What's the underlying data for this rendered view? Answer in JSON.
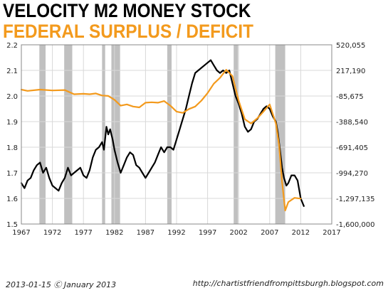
{
  "chart_data": {
    "type": "line",
    "title": "VELOCITY M2 MONEY STOCK",
    "subtitle": "FEDERAL SURPLUS / DEFICIT",
    "colors": {
      "velocity": "#000000",
      "deficit": "#f39a1d",
      "recession": "#c0c0c0",
      "grid": "#d8d8d8"
    },
    "x_ticks": [
      "1967",
      "1972",
      "1977",
      "1982",
      "1987",
      "1992",
      "1997",
      "2002",
      "2007",
      "2012",
      "2017"
    ],
    "xlim": [
      1967,
      2017
    ],
    "y_left_ticks": [
      "1.5",
      "1.6",
      "1.7",
      "1.8",
      "1.9",
      "2.0",
      "2.1",
      "2.2"
    ],
    "ylim_left": [
      1.5,
      2.2
    ],
    "y_right_ticks": [
      "-1,600,000",
      "-1,297,135",
      "-994,270",
      "-691,405",
      "-388,540",
      "-85,675",
      "217,190",
      "520,055"
    ],
    "ylim_right": [
      -1600000,
      520055
    ],
    "recessions": [
      [
        1969.9,
        1970.9
      ],
      [
        1973.9,
        1975.2
      ],
      [
        1980.0,
        1980.5
      ],
      [
        1981.5,
        1982.9
      ],
      [
        1990.5,
        1991.2
      ],
      [
        2001.2,
        2001.9
      ],
      [
        2007.9,
        2009.5
      ]
    ],
    "grid": true,
    "series": [
      {
        "key": "velocity",
        "axis": "left",
        "points": [
          [
            1967.0,
            1.66
          ],
          [
            1967.5,
            1.64
          ],
          [
            1968.0,
            1.67
          ],
          [
            1968.5,
            1.68
          ],
          [
            1969.0,
            1.71
          ],
          [
            1969.5,
            1.73
          ],
          [
            1970.0,
            1.74
          ],
          [
            1970.5,
            1.7
          ],
          [
            1971.0,
            1.72
          ],
          [
            1971.5,
            1.68
          ],
          [
            1972.0,
            1.65
          ],
          [
            1972.5,
            1.64
          ],
          [
            1973.0,
            1.63
          ],
          [
            1973.5,
            1.66
          ],
          [
            1974.0,
            1.68
          ],
          [
            1974.5,
            1.72
          ],
          [
            1975.0,
            1.69
          ],
          [
            1975.5,
            1.7
          ],
          [
            1976.0,
            1.71
          ],
          [
            1976.5,
            1.72
          ],
          [
            1977.0,
            1.69
          ],
          [
            1977.5,
            1.68
          ],
          [
            1978.0,
            1.71
          ],
          [
            1978.5,
            1.76
          ],
          [
            1979.0,
            1.79
          ],
          [
            1979.5,
            1.8
          ],
          [
            1980.0,
            1.82
          ],
          [
            1980.3,
            1.79
          ],
          [
            1980.7,
            1.88
          ],
          [
            1981.0,
            1.85
          ],
          [
            1981.3,
            1.87
          ],
          [
            1981.7,
            1.83
          ],
          [
            1982.0,
            1.79
          ],
          [
            1982.5,
            1.74
          ],
          [
            1983.0,
            1.7
          ],
          [
            1983.5,
            1.73
          ],
          [
            1984.0,
            1.76
          ],
          [
            1984.5,
            1.78
          ],
          [
            1985.0,
            1.77
          ],
          [
            1985.5,
            1.73
          ],
          [
            1986.0,
            1.72
          ],
          [
            1986.5,
            1.7
          ],
          [
            1987.0,
            1.68
          ],
          [
            1987.5,
            1.7
          ],
          [
            1988.0,
            1.72
          ],
          [
            1988.5,
            1.74
          ],
          [
            1989.0,
            1.77
          ],
          [
            1989.5,
            1.8
          ],
          [
            1990.0,
            1.78
          ],
          [
            1990.5,
            1.8
          ],
          [
            1991.0,
            1.8
          ],
          [
            1991.5,
            1.79
          ],
          [
            1992.0,
            1.83
          ],
          [
            1992.5,
            1.87
          ],
          [
            1993.0,
            1.91
          ],
          [
            1993.5,
            1.95
          ],
          [
            1994.0,
            2.0
          ],
          [
            1994.5,
            2.05
          ],
          [
            1995.0,
            2.09
          ],
          [
            1995.5,
            2.1
          ],
          [
            1996.0,
            2.11
          ],
          [
            1996.5,
            2.12
          ],
          [
            1997.0,
            2.13
          ],
          [
            1997.5,
            2.14
          ],
          [
            1998.0,
            2.12
          ],
          [
            1998.5,
            2.1
          ],
          [
            1999.0,
            2.09
          ],
          [
            1999.5,
            2.1
          ],
          [
            2000.0,
            2.09
          ],
          [
            2000.5,
            2.1
          ],
          [
            2001.0,
            2.05
          ],
          [
            2001.5,
            2.0
          ],
          [
            2002.0,
            1.97
          ],
          [
            2002.5,
            1.93
          ],
          [
            2003.0,
            1.88
          ],
          [
            2003.5,
            1.86
          ],
          [
            2004.0,
            1.87
          ],
          [
            2004.5,
            1.9
          ],
          [
            2005.0,
            1.91
          ],
          [
            2005.5,
            1.93
          ],
          [
            2006.0,
            1.95
          ],
          [
            2006.5,
            1.96
          ],
          [
            2007.0,
            1.95
          ],
          [
            2007.5,
            1.92
          ],
          [
            2008.0,
            1.9
          ],
          [
            2008.3,
            1.86
          ],
          [
            2008.6,
            1.8
          ],
          [
            2009.0,
            1.72
          ],
          [
            2009.3,
            1.68
          ],
          [
            2009.7,
            1.65
          ],
          [
            2010.0,
            1.66
          ],
          [
            2010.5,
            1.69
          ],
          [
            2011.0,
            1.69
          ],
          [
            2011.5,
            1.67
          ],
          [
            2012.0,
            1.6
          ],
          [
            2012.5,
            1.57
          ]
        ]
      },
      {
        "key": "deficit",
        "axis": "right",
        "points": [
          [
            1967.0,
            -10000
          ],
          [
            1968.0,
            -25000
          ],
          [
            1970.0,
            -10000
          ],
          [
            1972.0,
            -20000
          ],
          [
            1974.0,
            -15000
          ],
          [
            1975.5,
            -65000
          ],
          [
            1977.0,
            -60000
          ],
          [
            1978.0,
            -65000
          ],
          [
            1979.0,
            -55000
          ],
          [
            1980.0,
            -80000
          ],
          [
            1981.0,
            -85000
          ],
          [
            1982.0,
            -130000
          ],
          [
            1983.0,
            -200000
          ],
          [
            1984.0,
            -185000
          ],
          [
            1985.0,
            -210000
          ],
          [
            1986.0,
            -220000
          ],
          [
            1987.0,
            -165000
          ],
          [
            1988.0,
            -160000
          ],
          [
            1989.0,
            -165000
          ],
          [
            1990.0,
            -145000
          ],
          [
            1991.0,
            -200000
          ],
          [
            1992.0,
            -270000
          ],
          [
            1993.0,
            -285000
          ],
          [
            1994.0,
            -240000
          ],
          [
            1995.0,
            -210000
          ],
          [
            1996.0,
            -140000
          ],
          [
            1997.0,
            -50000
          ],
          [
            1998.0,
            60000
          ],
          [
            1999.0,
            130000
          ],
          [
            2000.0,
            225000
          ],
          [
            2001.0,
            150000
          ],
          [
            2002.0,
            -140000
          ],
          [
            2003.0,
            -360000
          ],
          [
            2004.0,
            -410000
          ],
          [
            2005.0,
            -350000
          ],
          [
            2006.0,
            -270000
          ],
          [
            2007.0,
            -185000
          ],
          [
            2008.0,
            -410000
          ],
          [
            2008.5,
            -660000
          ],
          [
            2009.0,
            -1100000
          ],
          [
            2009.5,
            -1440000
          ],
          [
            2010.0,
            -1340000
          ],
          [
            2011.0,
            -1290000
          ],
          [
            2012.0,
            -1300000
          ]
        ]
      }
    ]
  },
  "footer": {
    "date": "2013-01-15 Ⓒ January 2013",
    "url": "http://chartistfriendfrompittsburgh.blogspot.com"
  }
}
